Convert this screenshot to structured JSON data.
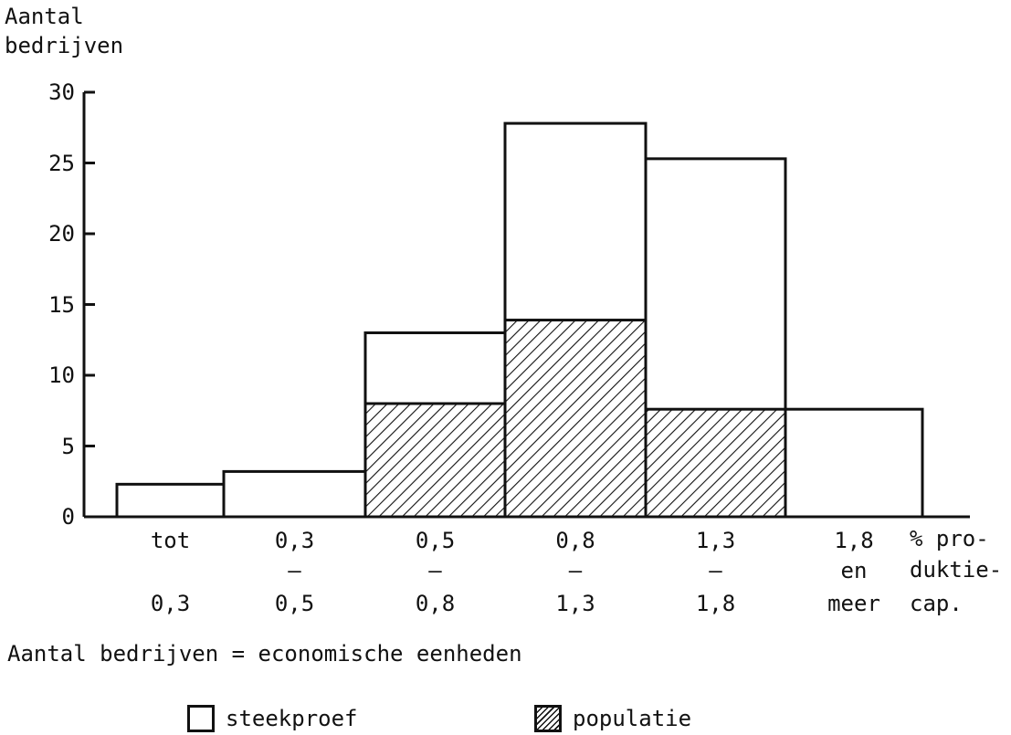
{
  "y_title_line1": "Aantal",
  "y_title_line2": "bedrijven",
  "x_title_lines": [
    "% pro-",
    "duktie-",
    "cap."
  ],
  "caption": "Aantal bedrijven = economische eenheden",
  "legend": {
    "steekproef": "steekproef",
    "populatie": "populatie"
  },
  "colors": {
    "line": "#111111",
    "fill": "#ffffff"
  },
  "chart_data": {
    "type": "bar",
    "categories": [
      [
        "tot",
        "",
        "0,3"
      ],
      [
        "0,3",
        "–",
        "0,5"
      ],
      [
        "0,5",
        "–",
        "0,8"
      ],
      [
        "0,8",
        "–",
        "1,3"
      ],
      [
        "1,3",
        "–",
        "1,8"
      ],
      [
        "1,8",
        "en",
        "meer"
      ]
    ],
    "series": [
      {
        "name": "steekproef",
        "values": [
          2.3,
          3.2,
          13,
          27.8,
          25.3,
          7.6
        ],
        "style": "outline"
      },
      {
        "name": "populatie",
        "values": [
          0,
          0,
          8,
          13.9,
          7.6,
          0
        ],
        "style": "hatched"
      }
    ],
    "ylim": [
      0,
      30
    ],
    "yticks": [
      0,
      5,
      10,
      15,
      20,
      25,
      30
    ],
    "grid": false,
    "legend_position": "bottom"
  }
}
